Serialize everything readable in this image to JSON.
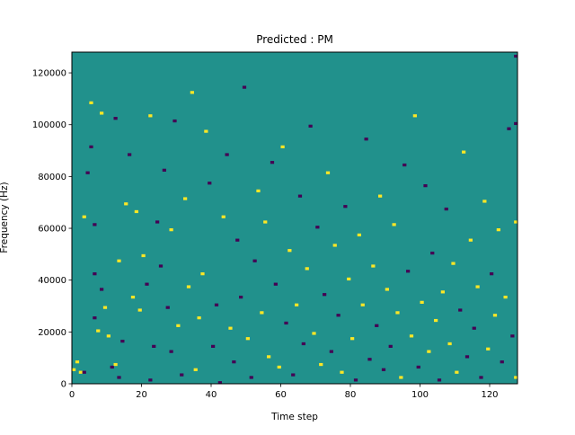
{
  "chart_data": {
    "type": "heatmap",
    "title": "Predicted : PM",
    "xlabel": "Time step",
    "ylabel": "Frequency (Hz)",
    "xlim": [
      0,
      128
    ],
    "ylim": [
      0,
      128000
    ],
    "xticks": [
      0,
      20,
      40,
      60,
      80,
      100,
      120
    ],
    "xtick_labels": [
      "0",
      "20",
      "40",
      "60",
      "80",
      "100",
      "120"
    ],
    "yticks": [
      0,
      20000,
      40000,
      60000,
      80000,
      100000,
      120000
    ],
    "ytick_labels": [
      "0",
      "20000",
      "40000",
      "60000",
      "80000",
      "100000",
      "120000"
    ],
    "grid": false,
    "bins": {
      "x_count": 128,
      "y_count": 128
    },
    "colormap": "viridis",
    "colors": {
      "background": "#21918c",
      "high": "#fde725",
      "low": "#440154"
    },
    "levels": {
      "background": 0,
      "high": 1,
      "low": -1
    },
    "cells": [
      {
        "x": 0,
        "y": 5,
        "value": 1
      },
      {
        "x": 1,
        "y": 8,
        "value": 1
      },
      {
        "x": 2,
        "y": 4,
        "value": 1
      },
      {
        "x": 3,
        "y": 4,
        "value": -1
      },
      {
        "x": 3,
        "y": 64,
        "value": 1
      },
      {
        "x": 4,
        "y": 81,
        "value": -1
      },
      {
        "x": 5,
        "y": 91,
        "value": -1
      },
      {
        "x": 5,
        "y": 108,
        "value": 1
      },
      {
        "x": 6,
        "y": 25,
        "value": -1
      },
      {
        "x": 6,
        "y": 42,
        "value": -1
      },
      {
        "x": 6,
        "y": 61,
        "value": -1
      },
      {
        "x": 7,
        "y": 20,
        "value": 1
      },
      {
        "x": 8,
        "y": 36,
        "value": -1
      },
      {
        "x": 8,
        "y": 104,
        "value": 1
      },
      {
        "x": 9,
        "y": 29,
        "value": 1
      },
      {
        "x": 10,
        "y": 18,
        "value": 1
      },
      {
        "x": 11,
        "y": 6,
        "value": -1
      },
      {
        "x": 12,
        "y": 7,
        "value": 1
      },
      {
        "x": 12,
        "y": 102,
        "value": -1
      },
      {
        "x": 13,
        "y": 2,
        "value": -1
      },
      {
        "x": 13,
        "y": 47,
        "value": 1
      },
      {
        "x": 14,
        "y": 16,
        "value": -1
      },
      {
        "x": 15,
        "y": 69,
        "value": 1
      },
      {
        "x": 16,
        "y": 88,
        "value": -1
      },
      {
        "x": 17,
        "y": 33,
        "value": 1
      },
      {
        "x": 18,
        "y": 66,
        "value": 1
      },
      {
        "x": 19,
        "y": 28,
        "value": 1
      },
      {
        "x": 20,
        "y": 49,
        "value": 1
      },
      {
        "x": 21,
        "y": 38,
        "value": -1
      },
      {
        "x": 22,
        "y": 1,
        "value": -1
      },
      {
        "x": 22,
        "y": 103,
        "value": 1
      },
      {
        "x": 23,
        "y": 14,
        "value": -1
      },
      {
        "x": 24,
        "y": 62,
        "value": -1
      },
      {
        "x": 25,
        "y": 45,
        "value": -1
      },
      {
        "x": 26,
        "y": 82,
        "value": -1
      },
      {
        "x": 27,
        "y": 29,
        "value": -1
      },
      {
        "x": 28,
        "y": 12,
        "value": -1
      },
      {
        "x": 28,
        "y": 59,
        "value": 1
      },
      {
        "x": 29,
        "y": 101,
        "value": -1
      },
      {
        "x": 30,
        "y": 22,
        "value": 1
      },
      {
        "x": 31,
        "y": 3,
        "value": -1
      },
      {
        "x": 32,
        "y": 71,
        "value": 1
      },
      {
        "x": 33,
        "y": 37,
        "value": 1
      },
      {
        "x": 34,
        "y": 112,
        "value": 1
      },
      {
        "x": 35,
        "y": 5,
        "value": 1
      },
      {
        "x": 36,
        "y": 25,
        "value": 1
      },
      {
        "x": 37,
        "y": 42,
        "value": 1
      },
      {
        "x": 38,
        "y": 97,
        "value": 1
      },
      {
        "x": 39,
        "y": 77,
        "value": -1
      },
      {
        "x": 40,
        "y": 14,
        "value": -1
      },
      {
        "x": 41,
        "y": 30,
        "value": -1
      },
      {
        "x": 42,
        "y": 0,
        "value": -1
      },
      {
        "x": 43,
        "y": 64,
        "value": 1
      },
      {
        "x": 44,
        "y": 88,
        "value": -1
      },
      {
        "x": 45,
        "y": 21,
        "value": 1
      },
      {
        "x": 46,
        "y": 8,
        "value": -1
      },
      {
        "x": 47,
        "y": 55,
        "value": -1
      },
      {
        "x": 48,
        "y": 33,
        "value": -1
      },
      {
        "x": 49,
        "y": 114,
        "value": -1
      },
      {
        "x": 50,
        "y": 17,
        "value": 1
      },
      {
        "x": 51,
        "y": 2,
        "value": -1
      },
      {
        "x": 52,
        "y": 47,
        "value": -1
      },
      {
        "x": 53,
        "y": 74,
        "value": 1
      },
      {
        "x": 54,
        "y": 27,
        "value": 1
      },
      {
        "x": 55,
        "y": 62,
        "value": 1
      },
      {
        "x": 56,
        "y": 10,
        "value": 1
      },
      {
        "x": 57,
        "y": 85,
        "value": -1
      },
      {
        "x": 58,
        "y": 38,
        "value": -1
      },
      {
        "x": 59,
        "y": 6,
        "value": 1
      },
      {
        "x": 60,
        "y": 91,
        "value": 1
      },
      {
        "x": 61,
        "y": 23,
        "value": -1
      },
      {
        "x": 62,
        "y": 51,
        "value": 1
      },
      {
        "x": 63,
        "y": 3,
        "value": -1
      },
      {
        "x": 64,
        "y": 30,
        "value": 1
      },
      {
        "x": 65,
        "y": 72,
        "value": -1
      },
      {
        "x": 66,
        "y": 15,
        "value": -1
      },
      {
        "x": 67,
        "y": 44,
        "value": 1
      },
      {
        "x": 68,
        "y": 99,
        "value": -1
      },
      {
        "x": 69,
        "y": 19,
        "value": 1
      },
      {
        "x": 70,
        "y": 60,
        "value": -1
      },
      {
        "x": 71,
        "y": 7,
        "value": 1
      },
      {
        "x": 72,
        "y": 34,
        "value": -1
      },
      {
        "x": 73,
        "y": 81,
        "value": 1
      },
      {
        "x": 74,
        "y": 12,
        "value": -1
      },
      {
        "x": 75,
        "y": 53,
        "value": 1
      },
      {
        "x": 76,
        "y": 26,
        "value": -1
      },
      {
        "x": 77,
        "y": 4,
        "value": 1
      },
      {
        "x": 78,
        "y": 68,
        "value": -1
      },
      {
        "x": 79,
        "y": 40,
        "value": 1
      },
      {
        "x": 80,
        "y": 17,
        "value": 1
      },
      {
        "x": 81,
        "y": 1,
        "value": -1
      },
      {
        "x": 82,
        "y": 57,
        "value": 1
      },
      {
        "x": 83,
        "y": 30,
        "value": 1
      },
      {
        "x": 84,
        "y": 94,
        "value": -1
      },
      {
        "x": 85,
        "y": 9,
        "value": -1
      },
      {
        "x": 86,
        "y": 45,
        "value": 1
      },
      {
        "x": 87,
        "y": 22,
        "value": -1
      },
      {
        "x": 88,
        "y": 72,
        "value": 1
      },
      {
        "x": 89,
        "y": 5,
        "value": -1
      },
      {
        "x": 90,
        "y": 36,
        "value": 1
      },
      {
        "x": 91,
        "y": 14,
        "value": -1
      },
      {
        "x": 92,
        "y": 61,
        "value": 1
      },
      {
        "x": 93,
        "y": 27,
        "value": 1
      },
      {
        "x": 94,
        "y": 2,
        "value": 1
      },
      {
        "x": 95,
        "y": 84,
        "value": -1
      },
      {
        "x": 96,
        "y": 43,
        "value": -1
      },
      {
        "x": 97,
        "y": 18,
        "value": 1
      },
      {
        "x": 98,
        "y": 103,
        "value": 1
      },
      {
        "x": 99,
        "y": 6,
        "value": -1
      },
      {
        "x": 100,
        "y": 31,
        "value": 1
      },
      {
        "x": 101,
        "y": 76,
        "value": -1
      },
      {
        "x": 102,
        "y": 12,
        "value": 1
      },
      {
        "x": 103,
        "y": 50,
        "value": -1
      },
      {
        "x": 104,
        "y": 24,
        "value": 1
      },
      {
        "x": 105,
        "y": 1,
        "value": -1
      },
      {
        "x": 106,
        "y": 35,
        "value": 1
      },
      {
        "x": 107,
        "y": 67,
        "value": -1
      },
      {
        "x": 108,
        "y": 15,
        "value": 1
      },
      {
        "x": 109,
        "y": 46,
        "value": 1
      },
      {
        "x": 110,
        "y": 4,
        "value": 1
      },
      {
        "x": 111,
        "y": 28,
        "value": -1
      },
      {
        "x": 112,
        "y": 89,
        "value": 1
      },
      {
        "x": 113,
        "y": 10,
        "value": -1
      },
      {
        "x": 114,
        "y": 55,
        "value": 1
      },
      {
        "x": 115,
        "y": 21,
        "value": -1
      },
      {
        "x": 116,
        "y": 37,
        "value": 1
      },
      {
        "x": 117,
        "y": 2,
        "value": -1
      },
      {
        "x": 118,
        "y": 70,
        "value": 1
      },
      {
        "x": 119,
        "y": 13,
        "value": 1
      },
      {
        "x": 120,
        "y": 42,
        "value": -1
      },
      {
        "x": 121,
        "y": 26,
        "value": 1
      },
      {
        "x": 122,
        "y": 59,
        "value": 1
      },
      {
        "x": 123,
        "y": 8,
        "value": -1
      },
      {
        "x": 124,
        "y": 33,
        "value": 1
      },
      {
        "x": 125,
        "y": 98,
        "value": -1
      },
      {
        "x": 126,
        "y": 18,
        "value": -1
      },
      {
        "x": 127,
        "y": 126,
        "value": -1
      },
      {
        "x": 127,
        "y": 100,
        "value": -1
      },
      {
        "x": 127,
        "y": 62,
        "value": 1
      },
      {
        "x": 127,
        "y": 2,
        "value": 1
      }
    ]
  }
}
